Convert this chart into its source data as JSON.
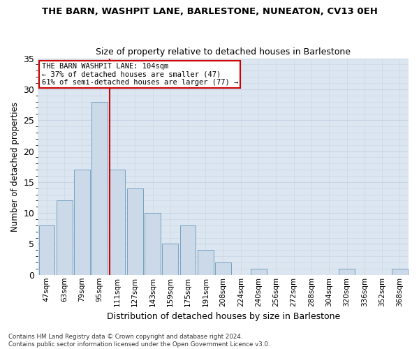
{
  "title": "THE BARN, WASHPIT LANE, BARLESTONE, NUNEATON, CV13 0EH",
  "subtitle": "Size of property relative to detached houses in Barlestone",
  "xlabel": "Distribution of detached houses by size in Barlestone",
  "ylabel": "Number of detached properties",
  "bar_labels": [
    "47sqm",
    "63sqm",
    "79sqm",
    "95sqm",
    "111sqm",
    "127sqm",
    "143sqm",
    "159sqm",
    "175sqm",
    "191sqm",
    "208sqm",
    "224sqm",
    "240sqm",
    "256sqm",
    "272sqm",
    "288sqm",
    "304sqm",
    "320sqm",
    "336sqm",
    "352sqm",
    "368sqm"
  ],
  "bar_values": [
    8,
    12,
    17,
    28,
    17,
    14,
    10,
    5,
    8,
    4,
    2,
    0,
    1,
    0,
    0,
    0,
    0,
    1,
    0,
    0,
    1
  ],
  "bar_color": "#ccd9e8",
  "bar_edgecolor": "#6699bb",
  "ref_vline_color": "#cc0000",
  "ref_vline_x": 3.57,
  "annotation_line1": "THE BARN WASHPIT LANE: 104sqm",
  "annotation_line2": "← 37% of detached houses are smaller (47)",
  "annotation_line3": "61% of semi-detached houses are larger (77) →",
  "annotation_box_facecolor": "#ffffff",
  "annotation_box_edgecolor": "#cc0000",
  "grid_color": "#c8d4e4",
  "bg_color": "#dce6f0",
  "ylim": [
    0,
    35
  ],
  "yticks": [
    0,
    5,
    10,
    15,
    20,
    25,
    30,
    35
  ],
  "footer_line1": "Contains HM Land Registry data © Crown copyright and database right 2024.",
  "footer_line2": "Contains public sector information licensed under the Open Government Licence v3.0."
}
